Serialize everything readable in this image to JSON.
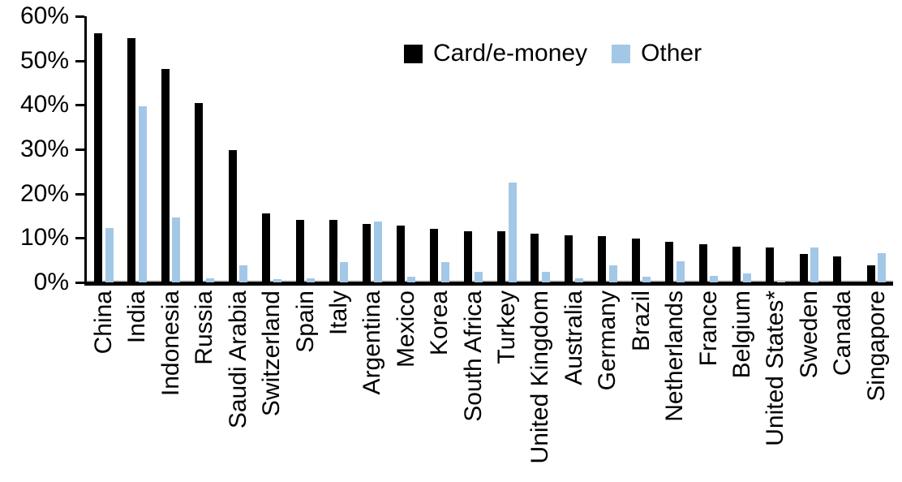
{
  "chart_data": {
    "type": "bar",
    "title": "",
    "xlabel": "",
    "ylabel": "",
    "ylim": [
      0,
      60
    ],
    "ytick_step": 10,
    "ytick_labels": [
      "0%",
      "10%",
      "20%",
      "30%",
      "40%",
      "50%",
      "60%"
    ],
    "grid": false,
    "legend_position": "top-center",
    "categories": [
      "China",
      "India",
      "Indonesia",
      "Russia",
      "Saudi Arabia",
      "Switzerland",
      "Spain",
      "Italy",
      "Argentina",
      "Mexico",
      "Korea",
      "South Africa",
      "Turkey",
      "United Kingdom",
      "Australia",
      "Germany",
      "Brazil",
      "Netherlands",
      "France",
      "Belgium",
      "United States*",
      "Sweden",
      "Canada",
      "Singapore"
    ],
    "series": [
      {
        "name": "Card/e-money",
        "color": "#000000",
        "values": [
          56.2,
          55.0,
          48.2,
          40.5,
          29.8,
          15.6,
          14.1,
          14.0,
          13.2,
          12.8,
          12.1,
          11.6,
          11.5,
          11.0,
          10.7,
          10.5,
          9.9,
          9.2,
          8.6,
          8.1,
          7.9,
          6.4,
          5.8,
          3.8
        ]
      },
      {
        "name": "Other",
        "color": "#A3C7E7",
        "values": [
          12.3,
          39.7,
          14.6,
          1.0,
          3.8,
          0.8,
          1.0,
          4.5,
          13.8,
          1.3,
          4.6,
          2.3,
          22.5,
          2.3,
          1.0,
          3.9,
          1.2,
          4.7,
          1.5,
          2.0,
          0.2,
          7.9,
          0.0,
          6.5
        ]
      }
    ]
  }
}
